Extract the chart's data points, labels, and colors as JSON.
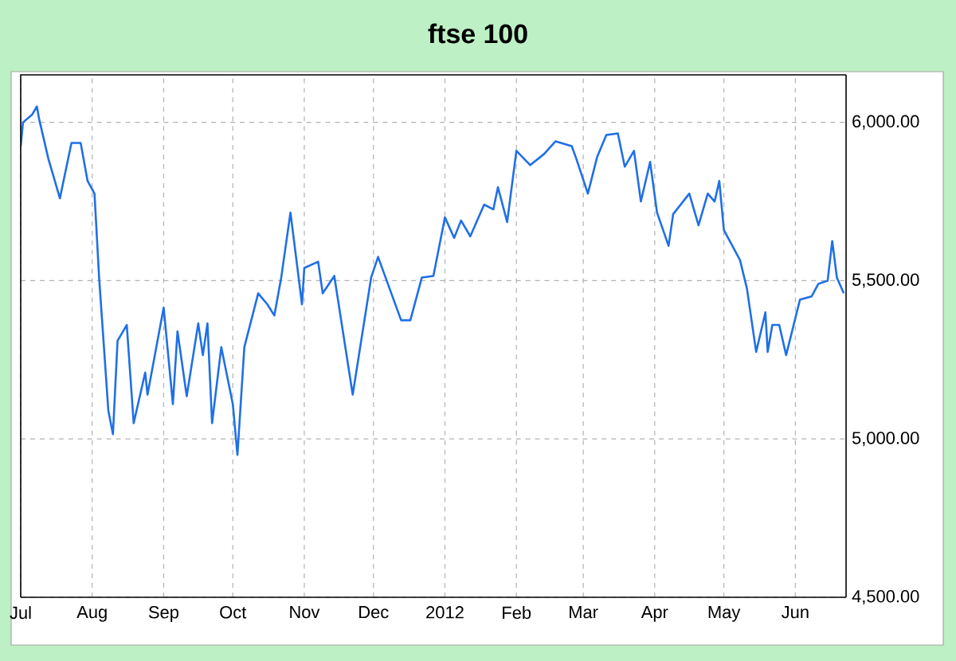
{
  "chart_data": {
    "type": "line",
    "title": "ftse 100",
    "x": [
      "2011-07-01",
      "2011-07-02",
      "2011-07-06",
      "2011-07-08",
      "2011-07-09",
      "2011-07-13",
      "2011-07-18",
      "2011-07-23",
      "2011-07-27",
      "2011-07-30",
      "2011-08-02",
      "2011-08-04",
      "2011-08-08",
      "2011-08-10",
      "2011-08-12",
      "2011-08-16",
      "2011-08-19",
      "2011-08-24",
      "2011-08-25",
      "2011-09-01",
      "2011-09-05",
      "2011-09-07",
      "2011-09-11",
      "2011-09-16",
      "2011-09-18",
      "2011-09-20",
      "2011-09-22",
      "2011-09-26",
      "2011-10-01",
      "2011-10-03",
      "2011-10-06",
      "2011-10-12",
      "2011-10-16",
      "2011-10-19",
      "2011-10-22",
      "2011-10-26",
      "2011-10-31",
      "2011-11-01",
      "2011-11-07",
      "2011-11-09",
      "2011-11-14",
      "2011-11-22",
      "2011-11-30",
      "2011-12-03",
      "2011-12-13",
      "2011-12-17",
      "2011-12-22",
      "2011-12-27",
      "2012-01-01",
      "2012-01-05",
      "2012-01-08",
      "2012-01-12",
      "2012-01-18",
      "2012-01-22",
      "2012-01-24",
      "2012-01-28",
      "2012-02-01",
      "2012-02-07",
      "2012-02-13",
      "2012-02-18",
      "2012-02-25",
      "2012-02-27",
      "2012-03-03",
      "2012-03-07",
      "2012-03-11",
      "2012-03-16",
      "2012-03-19",
      "2012-03-23",
      "2012-03-26",
      "2012-03-30",
      "2012-04-02",
      "2012-04-07",
      "2012-04-09",
      "2012-04-16",
      "2012-04-20",
      "2012-04-24",
      "2012-04-27",
      "2012-04-29",
      "2012-05-01",
      "2012-05-08",
      "2012-05-11",
      "2012-05-15",
      "2012-05-19",
      "2012-05-20",
      "2012-05-22",
      "2012-05-25",
      "2012-05-28",
      "2012-06-03",
      "2012-06-08",
      "2012-06-11",
      "2012-06-15",
      "2012-06-17",
      "2012-06-19",
      "2012-06-22"
    ],
    "series": [
      {
        "color": "#1f6fe8",
        "values": [
          5925,
          6000,
          6025,
          6050,
          6010,
          5885,
          5760,
          5935,
          5935,
          5815,
          5775,
          5510,
          5090,
          5015,
          5310,
          5360,
          5050,
          5210,
          5140,
          5415,
          5110,
          5340,
          5135,
          5365,
          5265,
          5365,
          5050,
          5290,
          5110,
          4950,
          5290,
          5460,
          5425,
          5390,
          5510,
          5715,
          5425,
          5540,
          5560,
          5460,
          5515,
          5140,
          5510,
          5575,
          5375,
          5375,
          5510,
          5515,
          5700,
          5635,
          5690,
          5640,
          5740,
          5725,
          5795,
          5685,
          5910,
          5865,
          5900,
          5940,
          5925,
          5885,
          5775,
          5890,
          5960,
          5965,
          5860,
          5910,
          5750,
          5875,
          5715,
          5610,
          5710,
          5775,
          5675,
          5775,
          5750,
          5815,
          5660,
          5565,
          5475,
          5275,
          5400,
          5275,
          5360,
          5360,
          5265,
          5440,
          5450,
          5490,
          5500,
          5625,
          5510,
          5460
        ]
      }
    ],
    "xlim": [
      "2011-07-01",
      "2012-06-23"
    ],
    "xticks": [
      {
        "value": "2011-07-01",
        "label": "Jul"
      },
      {
        "value": "2011-08-01",
        "label": "Aug"
      },
      {
        "value": "2011-09-01",
        "label": "Sep"
      },
      {
        "value": "2011-10-01",
        "label": "Oct"
      },
      {
        "value": "2011-11-01",
        "label": "Nov"
      },
      {
        "value": "2011-12-01",
        "label": "Dec"
      },
      {
        "value": "2012-01-01",
        "label": "2012"
      },
      {
        "value": "2012-02-01",
        "label": "Feb"
      },
      {
        "value": "2012-03-01",
        "label": "Mar"
      },
      {
        "value": "2012-04-01",
        "label": "Apr"
      },
      {
        "value": "2012-05-01",
        "label": "May"
      },
      {
        "value": "2012-06-01",
        "label": "Jun"
      }
    ],
    "ylim": [
      4500,
      6150
    ],
    "yticks": [
      {
        "value": 4500,
        "label": "4,500.00"
      },
      {
        "value": 5000,
        "label": "5,000.00"
      },
      {
        "value": 5500,
        "label": "5,500.00"
      },
      {
        "value": 6000,
        "label": "6,000.00"
      }
    ],
    "grid": true
  }
}
